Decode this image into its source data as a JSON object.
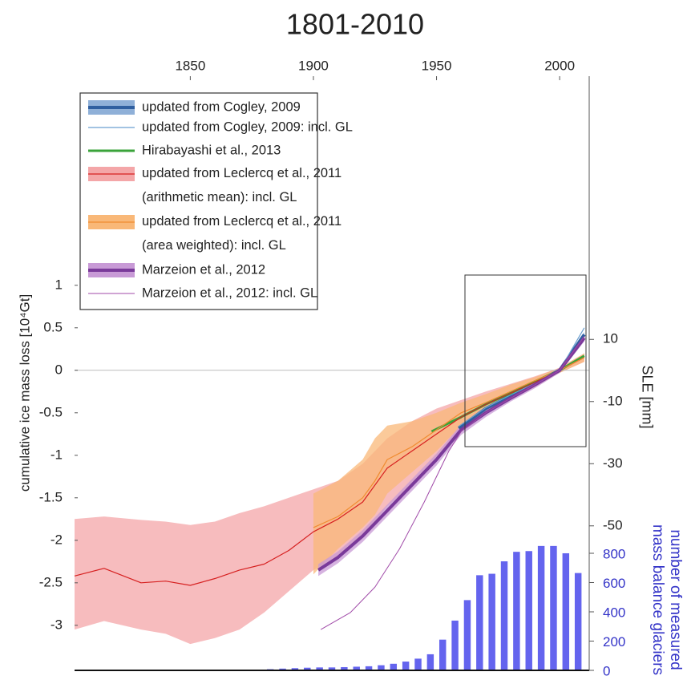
{
  "chart_data": {
    "type": "line",
    "title": "1801-2010",
    "ylabel": "cumulative ice mass loss [10⁴Gt]",
    "y2label": "SLE [mm]",
    "y3label": [
      "number of measured",
      "mass balance glaciers"
    ],
    "xlim": [
      1803,
      2012
    ],
    "xticks": [
      1850,
      1900,
      1950,
      2000
    ],
    "ylim": [
      -3.53,
      3.46
    ],
    "yticks": [
      -3,
      -2.5,
      -2,
      -1.5,
      -1,
      -0.5,
      0,
      0.5,
      1
    ],
    "y2lim": [
      -96.5,
      94.7
    ],
    "y2ticks": [
      -50,
      -30,
      -10,
      10
    ],
    "y3lim": [
      0,
      4060
    ],
    "y3ticks": [
      0,
      200,
      400,
      600,
      800
    ],
    "zero_line": true,
    "legend": "upper left",
    "series": [
      {
        "name": "updated from Cogley, 2009",
        "color": "#2f5fa0",
        "band_color": "#8fb0d8",
        "width": 4,
        "x": [
          1959,
          1970,
          1980,
          1990,
          2000,
          2010
        ],
        "values": [
          -0.68,
          -0.45,
          -0.3,
          -0.15,
          0,
          0.42
        ],
        "lower": [
          -0.71,
          -0.48,
          -0.33,
          -0.18,
          -0.03,
          0.39
        ],
        "upper": [
          -0.65,
          -0.42,
          -0.27,
          -0.12,
          0.03,
          0.45
        ]
      },
      {
        "name": "updated from Cogley, 2009: incl. GL",
        "color": "#6a9fd0",
        "width": 1.2,
        "x": [
          1959,
          1970,
          1980,
          1990,
          2000,
          2010
        ],
        "values": [
          -0.66,
          -0.44,
          -0.29,
          -0.15,
          0,
          0.5
        ]
      },
      {
        "name": "Hirabayashi et al., 2013",
        "color": "#3aa33a",
        "width": 3,
        "x": [
          1948,
          1960,
          1970,
          1980,
          1990,
          2000,
          2010
        ],
        "values": [
          -0.72,
          -0.55,
          -0.4,
          -0.27,
          -0.13,
          0,
          0.17
        ]
      },
      {
        "name": "updated from Leclercq et al., 2011 (arithmetic mean): incl. GL",
        "color": "#d62020",
        "band_color": "#f4a6a8",
        "width": 1.2,
        "x": [
          1803,
          1815,
          1830,
          1840,
          1850,
          1860,
          1870,
          1880,
          1890,
          1900,
          1910,
          1920,
          1930,
          1940,
          1950,
          1960,
          1970,
          1980,
          1990,
          2000,
          2010
        ],
        "values": [
          -2.42,
          -2.33,
          -2.5,
          -2.48,
          -2.53,
          -2.45,
          -2.35,
          -2.28,
          -2.12,
          -1.9,
          -1.75,
          -1.55,
          -1.15,
          -0.95,
          -0.75,
          -0.55,
          -0.4,
          -0.27,
          -0.14,
          0,
          0.15
        ],
        "upper": [
          -1.75,
          -1.72,
          -1.76,
          -1.78,
          -1.82,
          -1.78,
          -1.68,
          -1.6,
          -1.5,
          -1.4,
          -1.3,
          -1.1,
          -0.8,
          -0.6,
          -0.45,
          -0.35,
          -0.25,
          -0.16,
          -0.07,
          0.03,
          0.2
        ],
        "lower": [
          -3.05,
          -2.95,
          -3.05,
          -3.1,
          -3.22,
          -3.15,
          -3.05,
          -2.85,
          -2.6,
          -2.35,
          -2.2,
          -1.95,
          -1.6,
          -1.35,
          -1.05,
          -0.7,
          -0.5,
          -0.35,
          -0.2,
          -0.03,
          0.1
        ]
      },
      {
        "name": "updated from Leclercq et al., 2011 (area weighted): incl. GL",
        "color": "#f08c30",
        "band_color": "#f9b878",
        "width": 1.2,
        "x": [
          1900,
          1910,
          1920,
          1925,
          1930,
          1940,
          1950,
          1960,
          1970,
          1980,
          1990,
          2000,
          2010
        ],
        "values": [
          -1.85,
          -1.72,
          -1.5,
          -1.3,
          -1.05,
          -0.9,
          -0.7,
          -0.5,
          -0.38,
          -0.25,
          -0.12,
          0,
          0.15
        ],
        "upper": [
          -1.45,
          -1.3,
          -1.05,
          -0.8,
          -0.65,
          -0.6,
          -0.5,
          -0.38,
          -0.28,
          -0.17,
          -0.08,
          0.03,
          0.2
        ],
        "lower": [
          -2.4,
          -2.1,
          -1.85,
          -1.7,
          -1.45,
          -1.2,
          -0.95,
          -0.65,
          -0.5,
          -0.35,
          -0.18,
          -0.03,
          0.1
        ]
      },
      {
        "name": "Marzeion et al., 2012",
        "color": "#7a3a9a",
        "band_color": "#c89ad6",
        "width": 4,
        "x": [
          1902,
          1910,
          1920,
          1930,
          1940,
          1950,
          1960,
          1970,
          1980,
          1990,
          2000,
          2010
        ],
        "values": [
          -2.35,
          -2.2,
          -1.95,
          -1.65,
          -1.35,
          -1.05,
          -0.7,
          -0.5,
          -0.33,
          -0.17,
          0,
          0.38
        ],
        "lower": [
          -2.42,
          -2.27,
          -2.02,
          -1.72,
          -1.42,
          -1.12,
          -0.76,
          -0.55,
          -0.37,
          -0.21,
          -0.03,
          0.34
        ],
        "upper": [
          -2.28,
          -2.13,
          -1.88,
          -1.58,
          -1.28,
          -0.98,
          -0.64,
          -0.45,
          -0.29,
          -0.13,
          0.03,
          0.42
        ]
      },
      {
        "name": "Marzeion et al., 2012: incl. GL",
        "color": "#a04aa8",
        "width": 1,
        "x": [
          1903,
          1915,
          1925,
          1935,
          1945,
          1955,
          1960,
          1970,
          1980,
          1990,
          2000,
          2010
        ],
        "values": [
          -3.05,
          -2.85,
          -2.55,
          -2.1,
          -1.55,
          -0.95,
          -0.72,
          -0.5,
          -0.33,
          -0.17,
          0,
          0.4
        ]
      }
    ],
    "bar_series": {
      "color": "#6464ee",
      "axis": "y3",
      "width": 5,
      "x": [
        1862.5,
        1867.5,
        1872.5,
        1877.5,
        1882.5,
        1887.5,
        1892.5,
        1897.5,
        1902.5,
        1907.5,
        1912.5,
        1917.5,
        1922.5,
        1927.5,
        1932.5,
        1937.5,
        1942.5,
        1947.5,
        1952.5,
        1957.5,
        1962.5,
        1967.5,
        1972.5,
        1977.5,
        1982.5,
        1987.5,
        1992.5,
        1997.5,
        2002.5,
        2007.5
      ],
      "values": [
        2,
        3,
        4,
        5,
        8,
        12,
        15,
        18,
        20,
        20,
        22,
        25,
        28,
        35,
        45,
        60,
        80,
        110,
        210,
        340,
        480,
        650,
        660,
        745,
        810,
        815,
        850,
        850,
        800,
        665
      ]
    }
  }
}
